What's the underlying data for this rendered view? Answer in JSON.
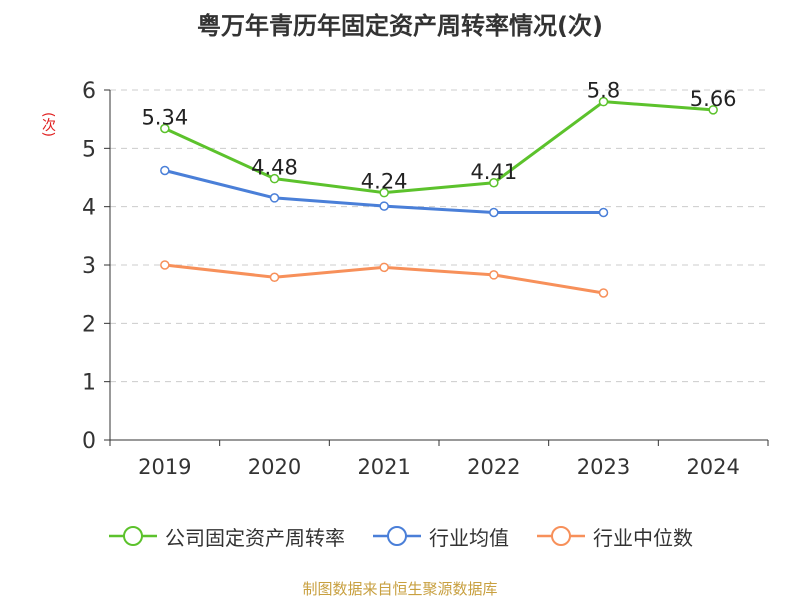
{
  "chart_data": {
    "type": "line",
    "title": "粤万年青历年固定资产周转率情况(次)",
    "ylabel": "(次)",
    "xlabel": "",
    "categories": [
      "2019",
      "2020",
      "2021",
      "2022",
      "2023",
      "2024"
    ],
    "ylim": [
      0,
      6
    ],
    "yticks": [
      0,
      1,
      2,
      3,
      4,
      5,
      6
    ],
    "grid": true,
    "legend_position": "bottom",
    "series": [
      {
        "name": "公司固定资产周转率",
        "values": [
          5.34,
          4.48,
          4.24,
          4.41,
          5.8,
          5.66
        ],
        "labels": [
          "5.34",
          "4.48",
          "4.24",
          "4.41",
          "5.8",
          "5.66"
        ],
        "color": "#5cc22c"
      },
      {
        "name": "行业均值",
        "values": [
          4.62,
          4.15,
          4.01,
          3.9,
          3.9,
          null
        ],
        "color": "#4a7fd8"
      },
      {
        "name": "行业中位数",
        "values": [
          3.0,
          2.79,
          2.96,
          2.83,
          2.52,
          null
        ],
        "color": "#f7905a"
      }
    ]
  },
  "source": "制图数据来自恒生聚源数据库"
}
